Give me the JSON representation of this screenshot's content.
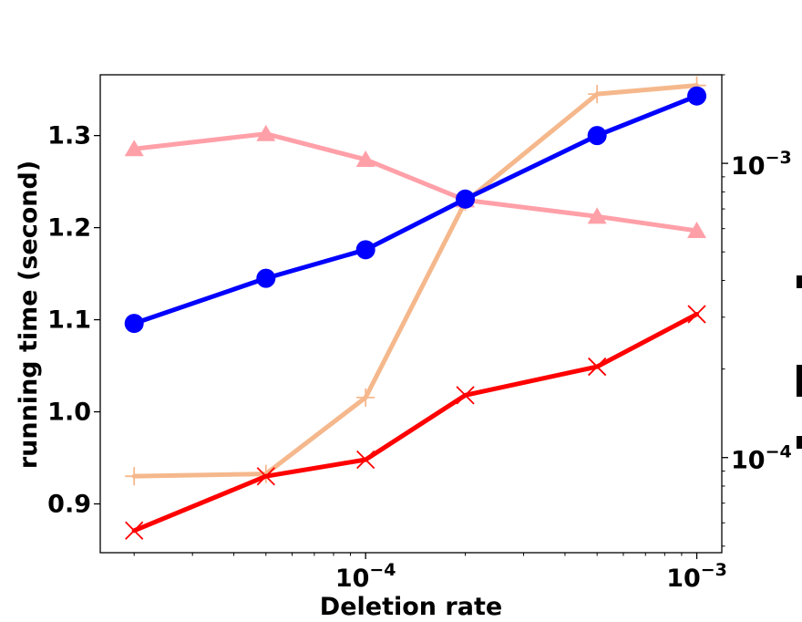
{
  "chart_data": {
    "type": "line",
    "xlabel": "Deletion rate",
    "ylabel": "running time (second)",
    "xscale": "log",
    "x_ticks": [
      {
        "value": 0.0001,
        "base": "10",
        "exp": "−4"
      },
      {
        "value": 0.001,
        "base": "10",
        "exp": "−3"
      }
    ],
    "y_ticks": [
      "0.9",
      "1.0",
      "1.1",
      "1.2",
      "1.3"
    ],
    "y2scale": "log",
    "y2_ticks": [
      {
        "value": 0.0001,
        "base": "10",
        "exp": "−4"
      },
      {
        "value": 0.001,
        "base": "10",
        "exp": "−3"
      }
    ],
    "y2label_note": "right axis label is cut off at the image edge",
    "xlim": [
      1.58e-05,
      0.00119
    ],
    "ylim": [
      0.847,
      1.366
    ],
    "y2lim": [
      4.75e-05,
      0.002
    ],
    "x": [
      2e-05,
      5e-05,
      0.0001,
      0.0002,
      0.0005,
      0.001
    ],
    "series": [
      {
        "axis": "left",
        "color": "#0000ff",
        "marker": "circle",
        "values": [
          1.096,
          1.145,
          1.176,
          1.231,
          1.3,
          1.343
        ]
      },
      {
        "axis": "left",
        "color": "#ff0000",
        "marker": "x",
        "values": [
          0.871,
          0.93,
          0.948,
          1.018,
          1.049,
          1.106
        ]
      },
      {
        "axis": "right",
        "color": "#ffa0a8",
        "marker": "triangle",
        "values": [
          0.00112,
          0.00126,
          0.00103,
          0.00075,
          0.00066,
          0.00059
        ]
      },
      {
        "axis": "right",
        "color": "#f5b88c",
        "marker": "plus",
        "values": [
          8.64e-05,
          8.8e-05,
          0.00016,
          0.00074,
          0.00172,
          0.00184
        ]
      }
    ],
    "grid": false,
    "legend": "none"
  }
}
